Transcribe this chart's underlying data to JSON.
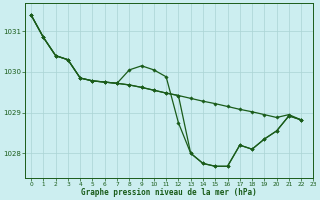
{
  "title": "Graphe pression niveau de la mer (hPa)",
  "background_color": "#cceef0",
  "grid_color": "#aad4d4",
  "line_color": "#1a5c1a",
  "xlim": [
    -0.5,
    23
  ],
  "ylim": [
    1027.4,
    1031.7
  ],
  "yticks": [
    1028,
    1029,
    1030,
    1031
  ],
  "xticks": [
    0,
    1,
    2,
    3,
    4,
    5,
    6,
    7,
    8,
    9,
    10,
    11,
    12,
    13,
    14,
    15,
    16,
    17,
    18,
    19,
    20,
    21,
    22,
    23
  ],
  "line1_x": [
    0,
    1,
    2,
    3,
    4,
    5,
    6,
    7,
    8,
    9,
    10,
    11,
    12,
    13,
    14,
    15,
    16,
    17,
    18,
    19,
    20,
    21,
    22
  ],
  "line1_y": [
    1031.4,
    1030.85,
    1030.4,
    1030.3,
    1029.85,
    1029.78,
    1029.75,
    1029.72,
    1029.68,
    1029.62,
    1029.55,
    1029.48,
    1029.42,
    1029.35,
    1029.28,
    1029.22,
    1029.15,
    1029.08,
    1029.02,
    1028.95,
    1028.88,
    1028.95,
    1028.82
  ],
  "line2_x": [
    0,
    1,
    2,
    3,
    4,
    5,
    6,
    7,
    8,
    9,
    10,
    11,
    12,
    13,
    14,
    15,
    16,
    17,
    18,
    19,
    20,
    21,
    22
  ],
  "line2_y": [
    1031.4,
    1030.85,
    1030.4,
    1030.3,
    1029.85,
    1029.78,
    1029.75,
    1029.72,
    1030.05,
    1030.15,
    1030.05,
    1029.88,
    1028.75,
    1028.0,
    1027.75,
    1027.68,
    1027.68,
    1028.2,
    1028.1,
    1028.35,
    1028.55,
    1028.92,
    1028.82
  ],
  "line3_x": [
    0,
    1,
    2,
    3,
    4,
    5,
    6,
    7,
    8,
    9,
    10,
    11,
    12,
    13,
    14,
    15,
    16,
    17,
    18,
    19,
    20,
    21,
    22
  ],
  "line3_y": [
    1031.4,
    1030.85,
    1030.4,
    1030.3,
    1029.85,
    1029.78,
    1029.75,
    1029.72,
    1029.68,
    1029.62,
    1029.55,
    1029.48,
    1029.42,
    1028.0,
    1027.75,
    1027.68,
    1027.68,
    1028.2,
    1028.1,
    1028.35,
    1028.55,
    1028.92,
    1028.82
  ]
}
